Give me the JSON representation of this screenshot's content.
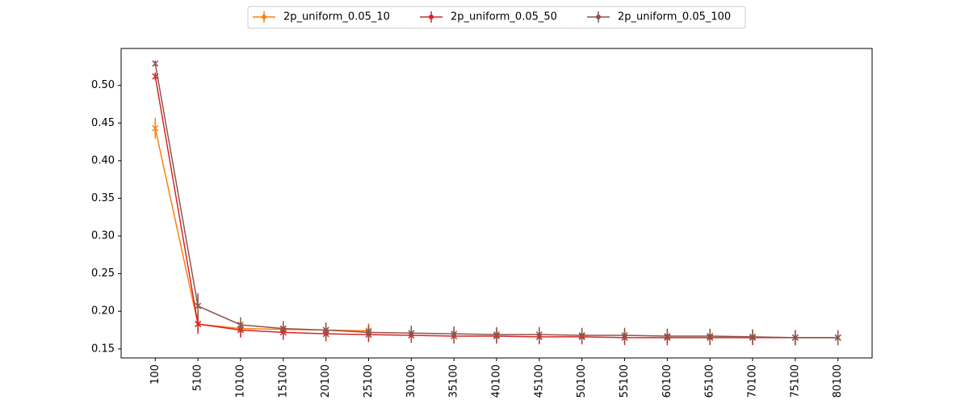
{
  "chart_data": {
    "type": "line",
    "x": [
      100,
      5100,
      10100,
      15100,
      20100,
      25100,
      30100,
      35100,
      40100,
      45100,
      50100,
      55100,
      60100,
      65100,
      70100,
      75100,
      80100
    ],
    "xticks": [
      100,
      5100,
      10100,
      15100,
      20100,
      25100,
      30100,
      35100,
      40100,
      45100,
      50100,
      55100,
      60100,
      65100,
      70100,
      75100,
      80100
    ],
    "xlim": [
      -3900,
      84100
    ],
    "ylim": [
      0.138,
      0.549
    ],
    "yticks": [
      {
        "value": 0.15,
        "label": "0.15"
      },
      {
        "value": 0.2,
        "label": "0.20"
      },
      {
        "value": 0.25,
        "label": "0.25"
      },
      {
        "value": 0.3,
        "label": "0.30"
      },
      {
        "value": 0.35,
        "label": "0.35"
      },
      {
        "value": 0.4,
        "label": "0.40"
      },
      {
        "value": 0.45,
        "label": "0.45"
      },
      {
        "value": 0.5,
        "label": "0.50"
      }
    ],
    "legend": "upper center",
    "series": [
      {
        "name": "2p_uniform_0.05_10",
        "color": "#ff7f0e",
        "values": [
          0.443,
          0.183,
          0.177,
          0.176,
          0.175,
          0.174,
          null,
          null,
          null,
          null,
          null,
          null,
          null,
          null,
          null,
          null,
          null
        ],
        "errors": [
          0.014,
          0.01,
          0.01,
          0.01,
          0.01,
          0.01,
          null,
          null,
          null,
          null,
          null,
          null,
          null,
          null,
          null,
          null,
          null
        ]
      },
      {
        "name": "2p_uniform_0.05_50",
        "color": "#d62728",
        "values": [
          0.512,
          0.183,
          0.175,
          0.172,
          0.17,
          0.169,
          0.168,
          0.167,
          0.167,
          0.166,
          0.166,
          0.165,
          0.165,
          0.165,
          0.165,
          0.165,
          0.165
        ],
        "errors": [
          0.005,
          0.013,
          0.01,
          0.01,
          0.01,
          0.01,
          0.01,
          0.01,
          0.01,
          0.01,
          0.01,
          0.01,
          0.01,
          0.01,
          0.01,
          0.01,
          0.01
        ]
      },
      {
        "name": "2p_uniform_0.05_100",
        "color": "#8c564b",
        "values": [
          0.529,
          0.207,
          0.182,
          0.177,
          0.175,
          0.172,
          0.171,
          0.17,
          0.169,
          0.169,
          0.168,
          0.168,
          0.167,
          0.167,
          0.166,
          0.165,
          0.165
        ],
        "errors": [
          0.004,
          0.017,
          0.01,
          0.01,
          0.01,
          0.01,
          0.01,
          0.01,
          0.01,
          0.01,
          0.01,
          0.01,
          0.01,
          0.01,
          0.01,
          0.01,
          0.01
        ]
      }
    ]
  }
}
